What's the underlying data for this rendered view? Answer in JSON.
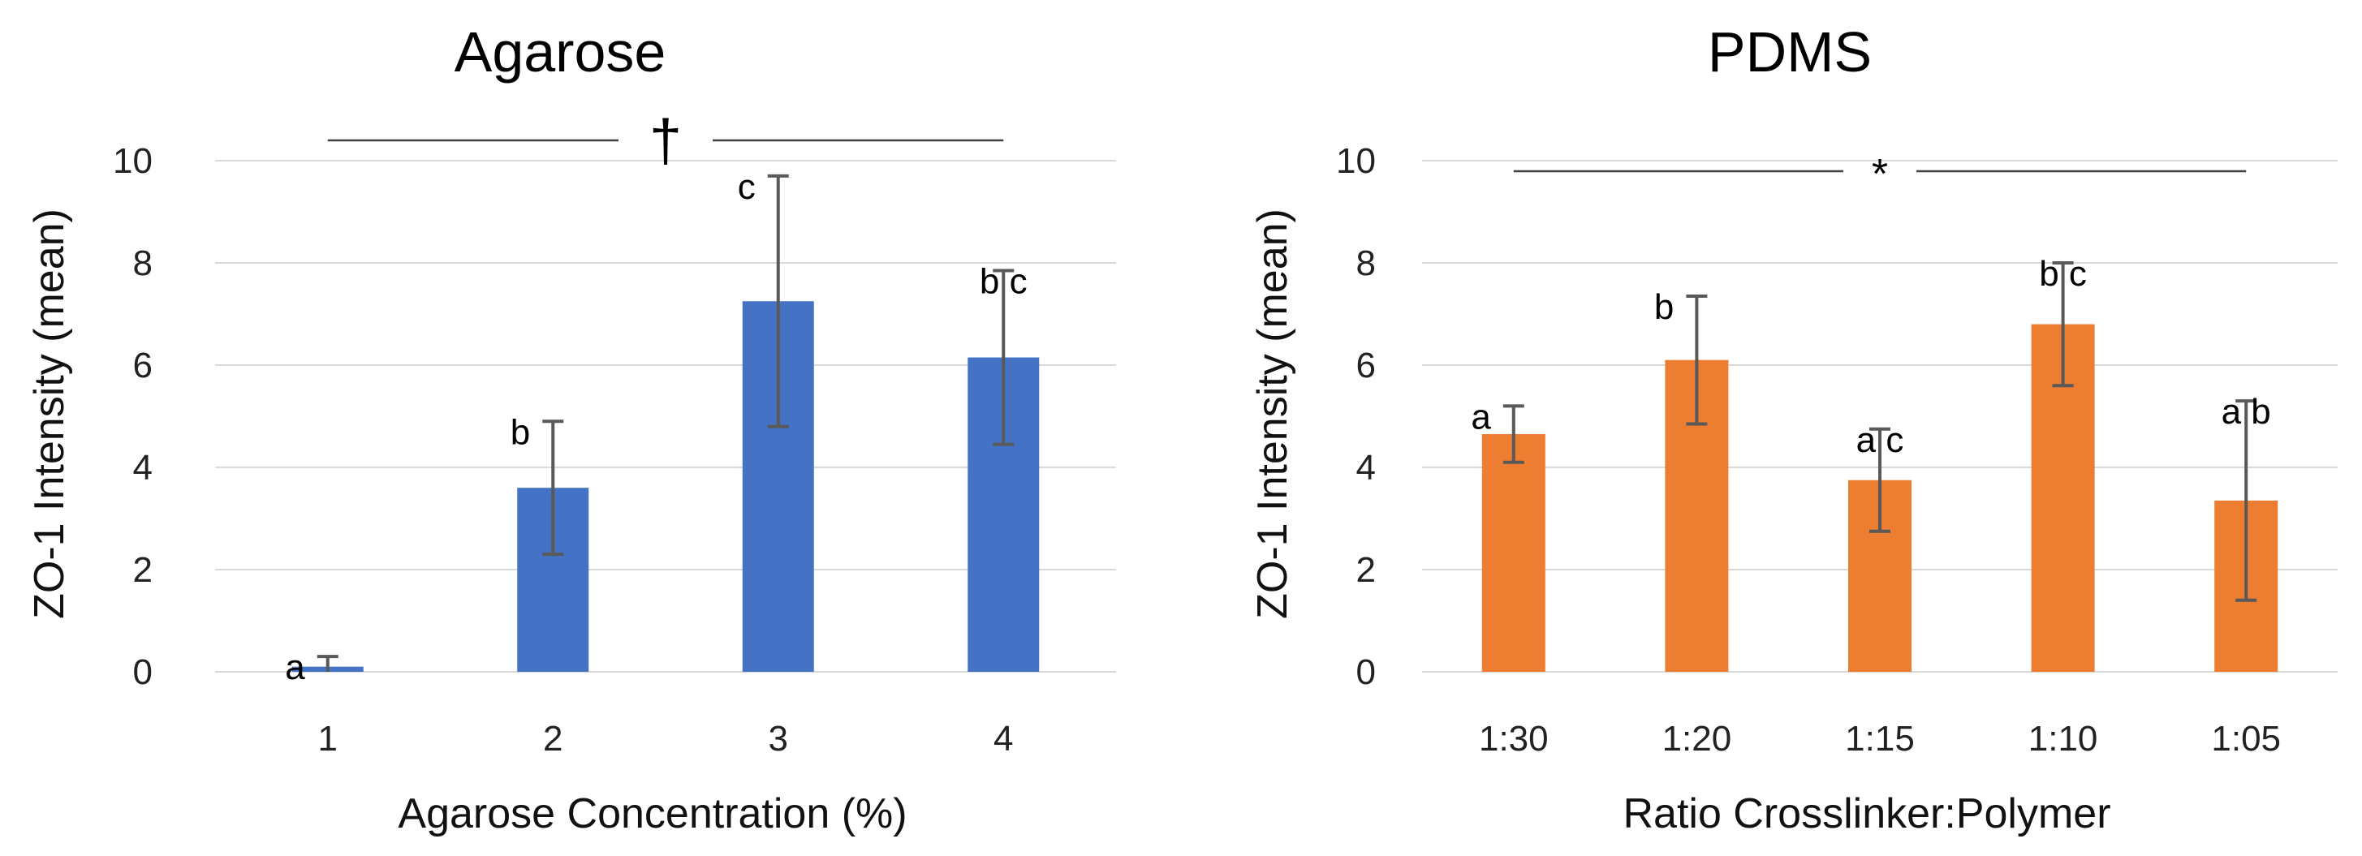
{
  "chart_data": [
    {
      "type": "bar",
      "title": "Agarose",
      "xlabel": "Agarose Concentration (%)",
      "ylabel": "ZO-1 Intensity (mean)",
      "ylim": [
        0,
        10
      ],
      "yticks": [
        0,
        2,
        4,
        6,
        8,
        10
      ],
      "categories": [
        "1",
        "2",
        "3",
        "4"
      ],
      "values": [
        0.1,
        3.6,
        7.25,
        6.15
      ],
      "errors": [
        0.2,
        1.3,
        2.45,
        1.7
      ],
      "letters": [
        "a",
        "b",
        "c",
        "b c"
      ],
      "significance": "†",
      "color": "#4472c4",
      "grid": true
    },
    {
      "type": "bar",
      "title": "PDMS",
      "xlabel": "Ratio Crosslinker:Polymer",
      "ylabel": "ZO-1 Intensity (mean)",
      "ylim": [
        0,
        10
      ],
      "yticks": [
        0,
        2,
        4,
        6,
        8,
        10
      ],
      "categories": [
        "1:30",
        "1:20",
        "1:15",
        "1:10",
        "1:05"
      ],
      "values": [
        4.65,
        6.1,
        3.75,
        6.8,
        3.35
      ],
      "errors": [
        0.55,
        1.25,
        1.0,
        1.2,
        1.95
      ],
      "letters": [
        "a",
        "b",
        "a c",
        "b c",
        "a b"
      ],
      "significance": "*",
      "color": "#ed7d31",
      "grid": true
    }
  ]
}
